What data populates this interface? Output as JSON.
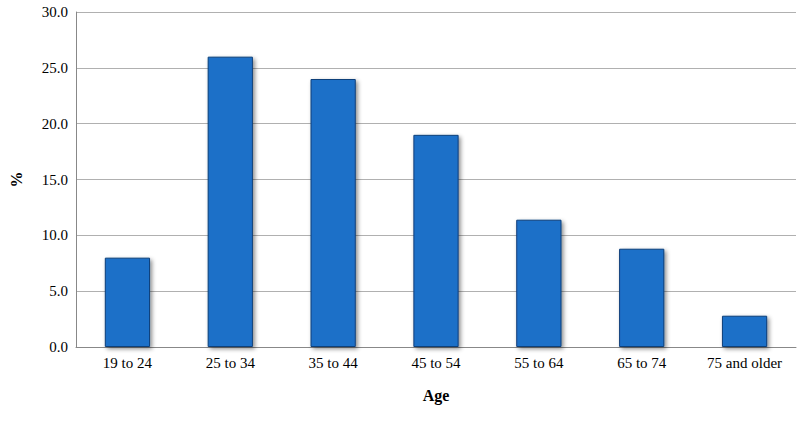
{
  "chart_data": {
    "type": "bar",
    "x_label": "Age",
    "y_label": "%",
    "categories": [
      "19 to 24",
      "25 to 34",
      "35 to 44",
      "45 to 54",
      "55 to 64",
      "65 to 74",
      "75 and older"
    ],
    "values": [
      8.0,
      26.0,
      24.0,
      19.0,
      11.4,
      8.8,
      2.8
    ],
    "color": "#1f6fc8",
    "ylim": [
      0,
      30
    ],
    "yticks": [
      {
        "value": 0,
        "label": "0.0"
      },
      {
        "value": 5,
        "label": "5.0"
      },
      {
        "value": 10,
        "label": "10.0"
      },
      {
        "value": 15,
        "label": "15.0"
      },
      {
        "value": 20,
        "label": "20.0"
      },
      {
        "value": 25,
        "label": "25.0"
      },
      {
        "value": 30,
        "label": "30.0"
      }
    ],
    "grid": true
  }
}
